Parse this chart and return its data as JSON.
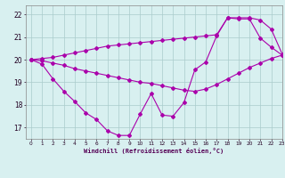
{
  "x": [
    0,
    1,
    2,
    3,
    4,
    5,
    6,
    7,
    8,
    9,
    10,
    11,
    12,
    13,
    14,
    15,
    16,
    17,
    18,
    19,
    20,
    21,
    22,
    23
  ],
  "line_zigzag": [
    20.0,
    19.8,
    19.15,
    18.6,
    18.15,
    17.65,
    17.35,
    16.85,
    16.65,
    16.65,
    17.6,
    18.5,
    17.55,
    17.5,
    18.1,
    19.55,
    19.9,
    21.05,
    21.85,
    21.8,
    21.8,
    20.95,
    20.55,
    20.2
  ],
  "line_upper": [
    20.0,
    20.05,
    20.1,
    20.2,
    20.3,
    20.4,
    20.5,
    20.6,
    20.65,
    20.7,
    20.75,
    20.8,
    20.85,
    20.9,
    20.95,
    21.0,
    21.05,
    21.1,
    21.85,
    21.85,
    21.85,
    21.75,
    21.35,
    20.25
  ],
  "line_lower": [
    20.0,
    19.95,
    19.85,
    19.75,
    19.6,
    19.5,
    19.4,
    19.3,
    19.2,
    19.1,
    19.0,
    18.95,
    18.85,
    18.75,
    18.65,
    18.6,
    18.7,
    18.9,
    19.15,
    19.4,
    19.65,
    19.85,
    20.05,
    20.2
  ],
  "color": "#aa00aa",
  "bg_color": "#d8f0f0",
  "grid_color": "#aacccc",
  "xlabel": "Windchill (Refroidissement éolien,°C)",
  "xlim": [
    -0.5,
    23
  ],
  "ylim": [
    16.5,
    22.4
  ],
  "yticks": [
    17,
    18,
    19,
    20,
    21,
    22
  ],
  "xticks": [
    0,
    1,
    2,
    3,
    4,
    5,
    6,
    7,
    8,
    9,
    10,
    11,
    12,
    13,
    14,
    15,
    16,
    17,
    18,
    19,
    20,
    21,
    22,
    23
  ]
}
